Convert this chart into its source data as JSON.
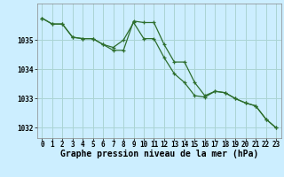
{
  "title": "Graphe pression niveau de la mer (hPa)",
  "background_color": "#cceeff",
  "grid_color": "#aad4d4",
  "line_color": "#2d6e2d",
  "hours": [
    0,
    1,
    2,
    3,
    4,
    5,
    6,
    7,
    8,
    9,
    10,
    11,
    12,
    13,
    14,
    15,
    16,
    17,
    18,
    19,
    20,
    21,
    22,
    23
  ],
  "series1": [
    1035.75,
    1035.55,
    1035.55,
    1035.1,
    1035.05,
    1035.05,
    1034.85,
    1034.75,
    1035.0,
    1035.6,
    1035.05,
    1035.05,
    1034.4,
    1033.85,
    1033.55,
    1033.1,
    1033.05,
    1033.25,
    1033.2,
    1033.0,
    1032.85,
    1032.75,
    1032.3,
    1032.0
  ],
  "series2": [
    1035.75,
    1035.55,
    1035.55,
    1035.1,
    1035.05,
    1035.05,
    1034.85,
    1034.65,
    1034.65,
    1035.65,
    1035.6,
    1035.6,
    1034.85,
    1034.25,
    1034.25,
    1033.55,
    1033.1,
    1033.25,
    1033.2,
    1033.0,
    1032.85,
    1032.75,
    1032.3,
    1032.0
  ],
  "ylim_min": 1031.65,
  "ylim_max": 1036.25,
  "yticks": [
    1032,
    1033,
    1034,
    1035
  ],
  "title_fontsize": 7,
  "tick_fontsize": 5.5
}
